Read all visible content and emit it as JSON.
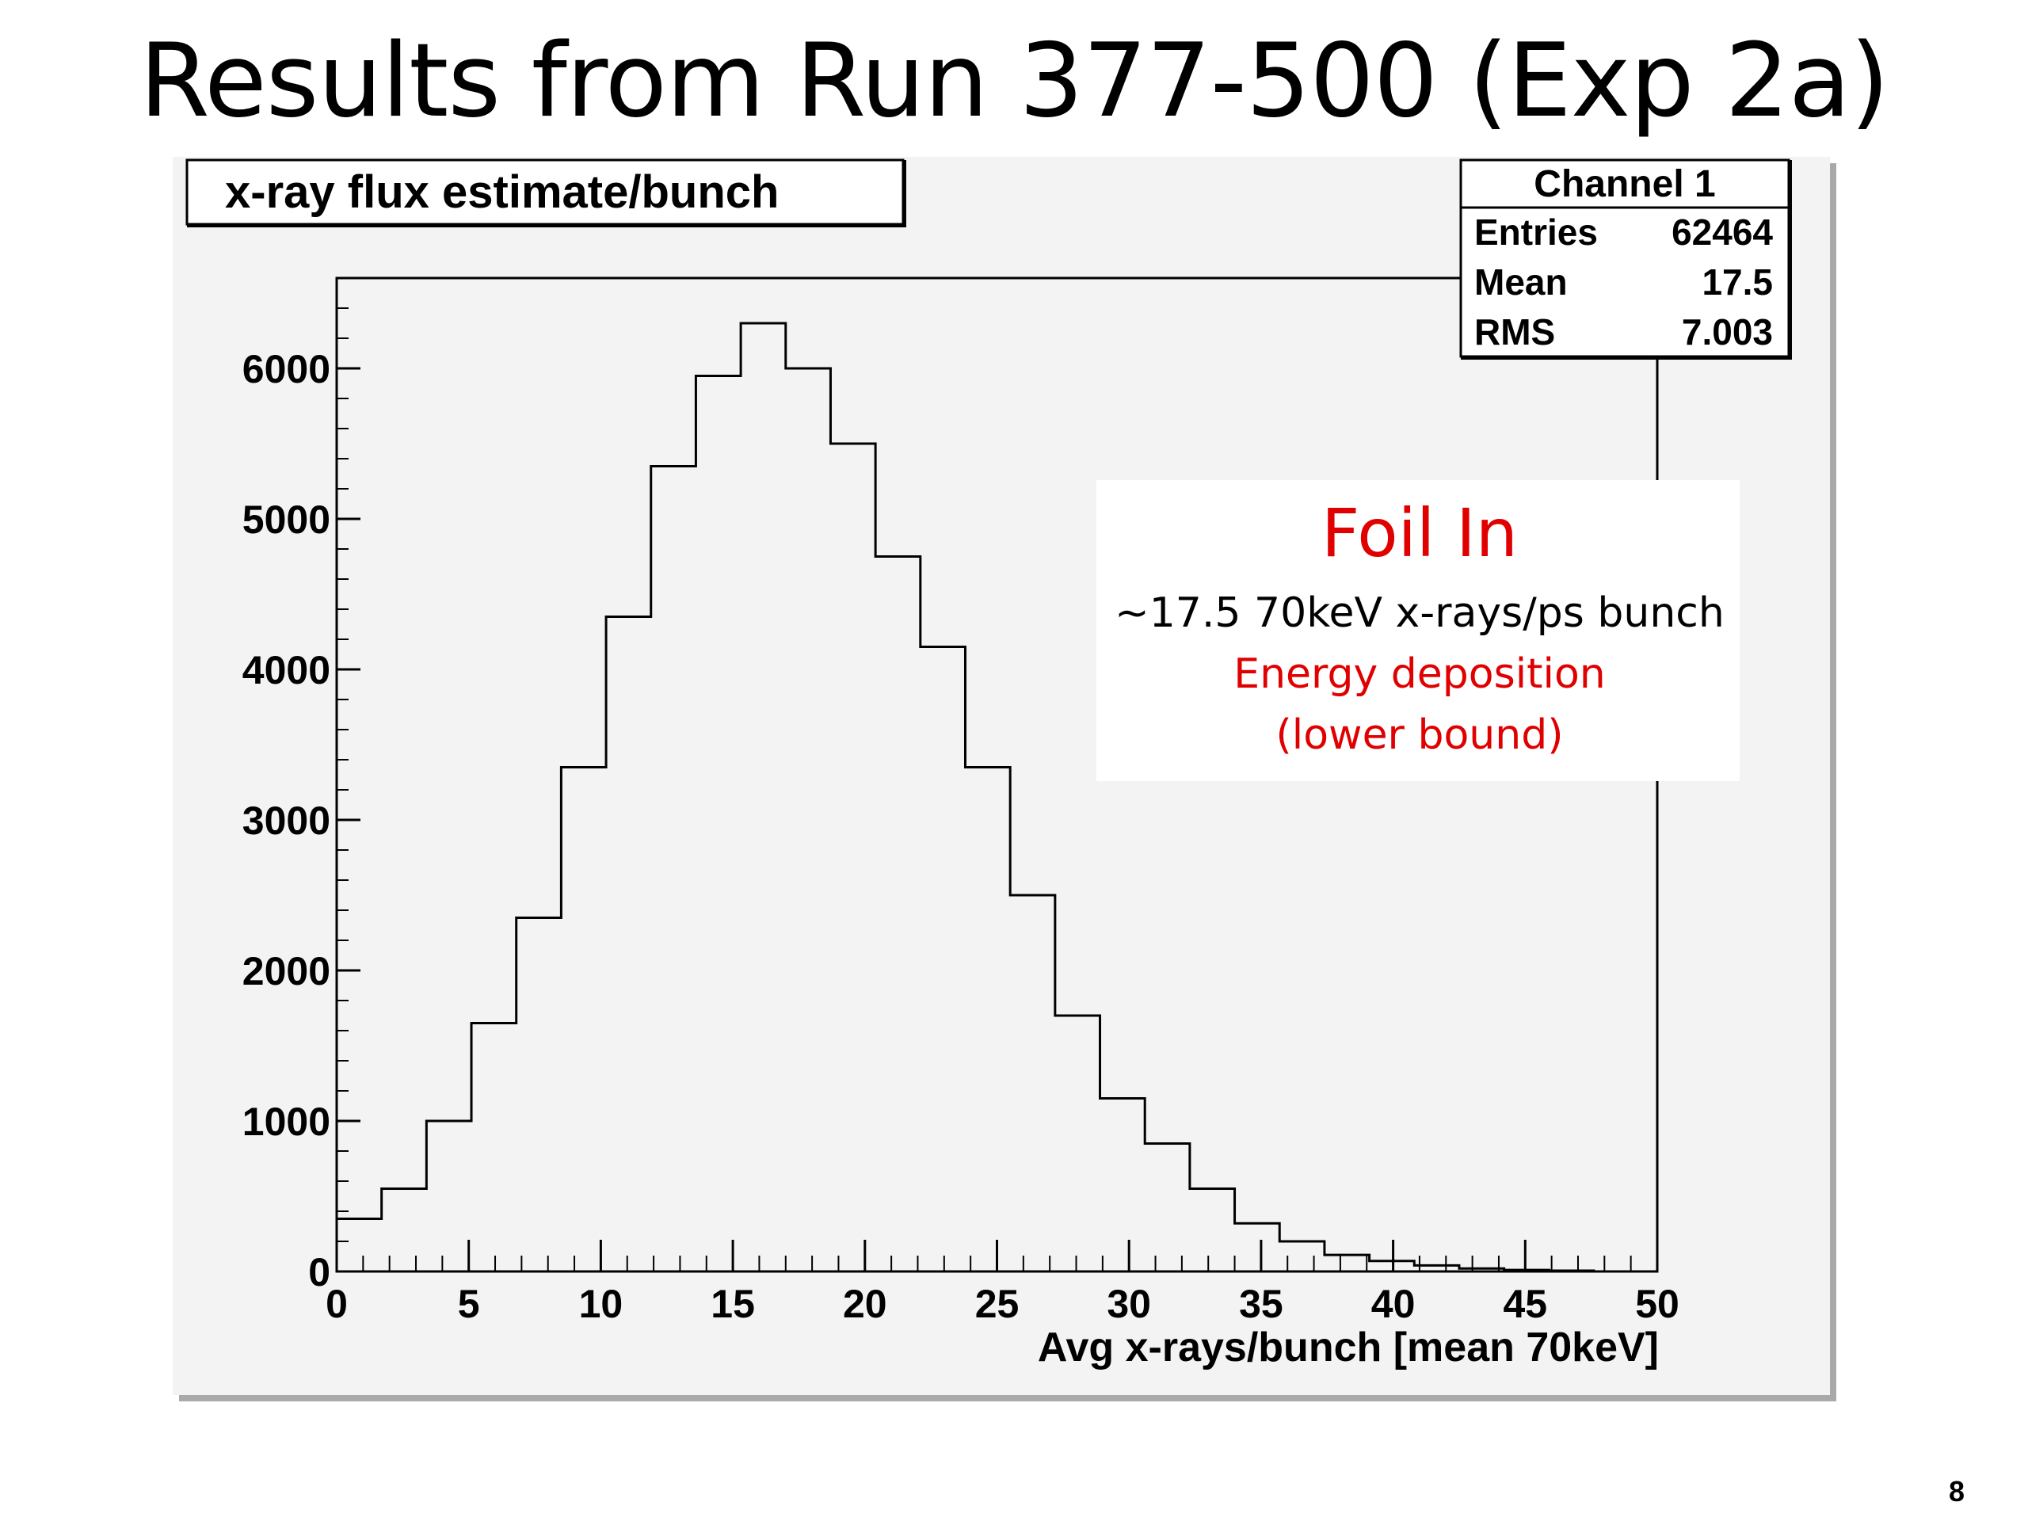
{
  "slide": {
    "title": "Results from Run 377-500 (Exp 2a)",
    "page_number": "8"
  },
  "chart_data": {
    "type": "histogram",
    "title": "x-ray flux estimate/bunch",
    "xlabel": "Avg x-rays/bunch [mean 70keV]",
    "ylabel": "",
    "xlim": [
      0,
      50
    ],
    "ylim": [
      0,
      6600
    ],
    "x_ticks": [
      "0",
      "5",
      "10",
      "15",
      "20",
      "25",
      "30",
      "35",
      "40",
      "45",
      "50"
    ],
    "y_ticks": [
      "0",
      "1000",
      "2000",
      "3000",
      "4000",
      "5000",
      "6000"
    ],
    "grid": false,
    "bin_edges": [
      0,
      1.7,
      3.4,
      5.1,
      6.8,
      8.5,
      10.2,
      11.9,
      13.6,
      15.3,
      17.0,
      18.7,
      20.4,
      22.1,
      23.8,
      25.5,
      27.2,
      28.9,
      30.6,
      32.3,
      34.0,
      35.7,
      37.4,
      39.1,
      40.8,
      42.5,
      44.2,
      45.9,
      47.6,
      49.3
    ],
    "counts": [
      350,
      550,
      1000,
      1650,
      2350,
      3350,
      4350,
      5350,
      5950,
      6300,
      6000,
      5500,
      4750,
      4150,
      3350,
      2500,
      1700,
      1150,
      850,
      550,
      320,
      200,
      110,
      70,
      40,
      20,
      10,
      5,
      0
    ],
    "stats": {
      "name": "Channel 1",
      "rows": [
        {
          "label": "Entries",
          "value": "62464"
        },
        {
          "label": "Mean",
          "value": "17.5"
        },
        {
          "label": "RMS",
          "value": "7.003"
        }
      ]
    },
    "annotation": {
      "heading": "Foil In",
      "line1": "~17.5 70keV x-rays/ps bunch",
      "line2": "Energy deposition",
      "line3": "(lower bound)",
      "heading_color": "#e00000",
      "red_color": "#e00000"
    }
  }
}
